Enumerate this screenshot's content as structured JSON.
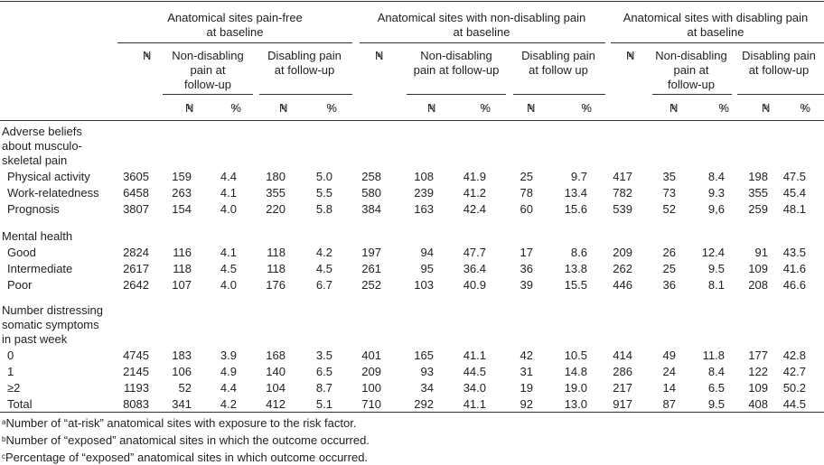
{
  "table": {
    "groups": [
      {
        "title": [
          "Anatomical sites pain-free",
          "at baseline"
        ],
        "n": {
          "label": "N",
          "sup": "a"
        },
        "subs": [
          {
            "title": [
              "Non-disabling",
              "pain at",
              "follow-up"
            ]
          },
          {
            "title": [
              "Disabling pain",
              "at follow-up"
            ]
          }
        ]
      },
      {
        "title": [
          "Anatomical sites with non-disabling pain",
          "at baseline"
        ],
        "n": {
          "label": "N",
          "sup": "a"
        },
        "subs": [
          {
            "title": [
              "Non-disabling",
              "pain at follow-up"
            ]
          },
          {
            "title": [
              "Disabling pain",
              "at follow up"
            ]
          }
        ]
      },
      {
        "title": [
          "Anatomical sites with disabling pain",
          "at baseline"
        ],
        "n": {
          "label": "N",
          "sup": "a"
        },
        "subs": [
          {
            "title": [
              "Non-disabling",
              "pain at",
              "follow-up"
            ]
          },
          {
            "title": [
              "Disabling pain",
              "at follow-up"
            ]
          }
        ]
      }
    ],
    "count_col": {
      "label": "N",
      "sup": "b"
    },
    "pct_col": {
      "label": "%",
      "sup": "c"
    },
    "sections": [
      {
        "title": [
          "Adverse beliefs",
          "about musculo-",
          "skeletal pain"
        ],
        "rows": [
          {
            "label": "Physical activity",
            "cells": [
              "3605",
              "159",
              "4.4",
              "180",
              "5.0",
              "258",
              "108",
              "41.9",
              "25",
              "9.7",
              "417",
              "35",
              "8.4",
              "198",
              "47.5"
            ]
          },
          {
            "label": "Work-relatedness",
            "cells": [
              "6458",
              "263",
              "4.1",
              "355",
              "5.5",
              "580",
              "239",
              "41.2",
              "78",
              "13.4",
              "782",
              "73",
              "9.3",
              "355",
              "45.4"
            ]
          },
          {
            "label": "Prognosis",
            "cells": [
              "3807",
              "154",
              "4.0",
              "220",
              "5.8",
              "384",
              "163",
              "42.4",
              "60",
              "15.6",
              "539",
              "52",
              "9,6",
              "259",
              "48.1"
            ]
          }
        ]
      },
      {
        "title": [
          "Mental health"
        ],
        "rows": [
          {
            "label": "Good",
            "cells": [
              "2824",
              "116",
              "4.1",
              "118",
              "4.2",
              "197",
              "94",
              "47.7",
              "17",
              "8.6",
              "209",
              "26",
              "12.4",
              "91",
              "43.5"
            ]
          },
          {
            "label": "Intermediate",
            "cells": [
              "2617",
              "118",
              "4.5",
              "118",
              "4.5",
              "261",
              "95",
              "36.4",
              "36",
              "13.8",
              "262",
              "25",
              "9.5",
              "109",
              "41.6"
            ]
          },
          {
            "label": "Poor",
            "cells": [
              "2642",
              "107",
              "4.0",
              "176",
              "6.7",
              "252",
              "103",
              "40.9",
              "39",
              "15.5",
              "446",
              "36",
              "8.1",
              "208",
              "46.6"
            ]
          }
        ]
      },
      {
        "title": [
          "Number distressing",
          "somatic symptoms",
          "in past week"
        ],
        "rows": [
          {
            "label": "0",
            "cells": [
              "4745",
              "183",
              "3.9",
              "168",
              "3.5",
              "401",
              "165",
              "41.1",
              "42",
              "10.5",
              "414",
              "49",
              "11.8",
              "177",
              "42.8"
            ]
          },
          {
            "label": "1",
            "cells": [
              "2145",
              "106",
              "4.9",
              "140",
              "6.5",
              "209",
              "93",
              "44.5",
              "31",
              "14.8",
              "286",
              "24",
              "8.4",
              "122",
              "42.7"
            ]
          },
          {
            "label": "≥2",
            "cells": [
              "1193",
              "52",
              "4.4",
              "104",
              "8.7",
              "100",
              "34",
              "34.0",
              "19",
              "19.0",
              "217",
              "14",
              "6.5",
              "109",
              "50.2"
            ]
          },
          {
            "label": "Total",
            "cells": [
              "8083",
              "341",
              "4.2",
              "412",
              "5.1",
              "710",
              "292",
              "41.1",
              "92",
              "13.0",
              "917",
              "87",
              "9.5",
              "408",
              "44.5"
            ]
          }
        ]
      }
    ],
    "footnotes": [
      {
        "sup": "a",
        "text": "Number of “at-risk” anatomical sites with exposure to the risk factor."
      },
      {
        "sup": "b",
        "text": "Number of “exposed” anatomical sites in which the outcome occurred."
      },
      {
        "sup": "c",
        "text": "Percentage of “exposed” anatomical sites in which outcome occurred."
      }
    ]
  }
}
